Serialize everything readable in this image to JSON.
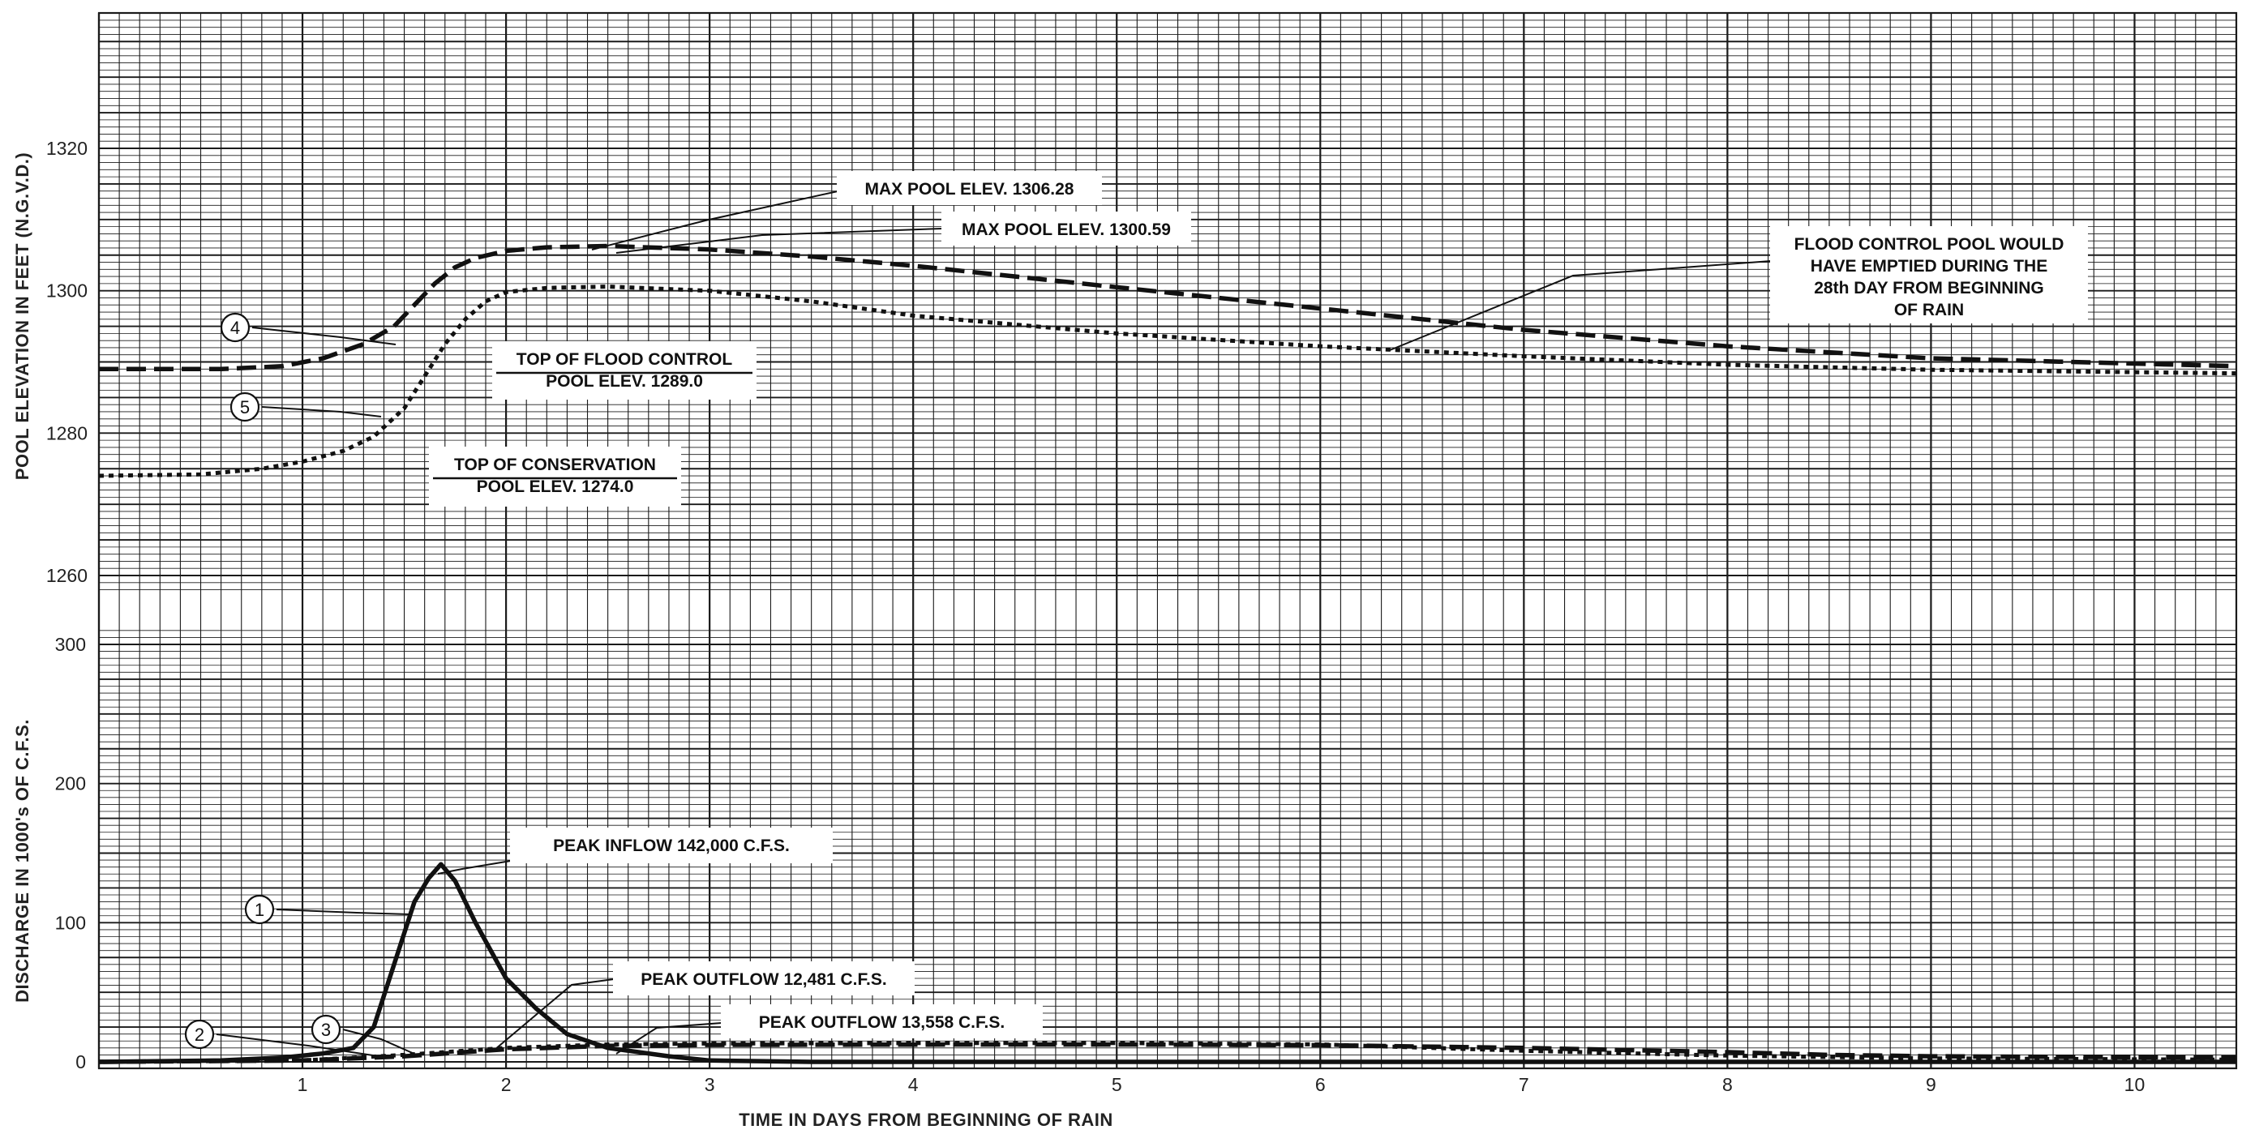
{
  "chart_data": {
    "type": "line",
    "xlabel": "TIME IN DAYS FROM BEGINNING OF RAIN",
    "x_ticks": [
      "1",
      "2",
      "3",
      "4",
      "5",
      "6",
      "7",
      "8",
      "9",
      "10"
    ],
    "xlim": [
      0,
      10.5
    ],
    "top_panel": {
      "ylabel": "POOL ELEVATION IN FEET (N.G.V.D.)",
      "y_ticks": [
        "1260",
        "1280",
        "1300",
        "1320"
      ],
      "ylim": [
        1257,
        1341
      ],
      "series": [
        {
          "marker": "4",
          "style": "dashed",
          "x": [
            0,
            0.6,
            0.9,
            1.1,
            1.3,
            1.45,
            1.55,
            1.65,
            1.75,
            1.85,
            2.0,
            2.2,
            2.5,
            3.0,
            3.5,
            4.0,
            5.0,
            6.0,
            6.5,
            7.0,
            8.0,
            9.0,
            10.5
          ],
          "y": [
            1289.0,
            1289.0,
            1289.4,
            1290.5,
            1292.5,
            1295.0,
            1298.0,
            1301.0,
            1303.3,
            1304.6,
            1305.6,
            1306.1,
            1306.28,
            1305.8,
            1304.8,
            1303.5,
            1300.5,
            1297.5,
            1296.0,
            1294.5,
            1292.2,
            1290.5,
            1289.4
          ]
        },
        {
          "marker": "5",
          "style": "dotted",
          "x": [
            0,
            0.5,
            0.8,
            1.0,
            1.2,
            1.35,
            1.5,
            1.6,
            1.7,
            1.8,
            1.9,
            2.0,
            2.2,
            2.5,
            3.0,
            3.5,
            4.0,
            5.0,
            6.0,
            7.0,
            8.0,
            9.0,
            10.5
          ],
          "y": [
            1274.0,
            1274.2,
            1275.0,
            1276.0,
            1277.5,
            1279.5,
            1283.5,
            1288.0,
            1292.5,
            1296.0,
            1298.5,
            1299.8,
            1300.4,
            1300.59,
            1300.0,
            1298.5,
            1296.5,
            1294.0,
            1292.2,
            1290.8,
            1289.6,
            1288.9,
            1288.4
          ]
        }
      ]
    },
    "bottom_panel": {
      "ylabel": "DISCHARGE IN 1000's OF C.F.S.",
      "y_ticks": [
        "0",
        "100",
        "200",
        "300"
      ],
      "ylim": [
        -4,
        300
      ],
      "series": [
        {
          "marker": "1",
          "style": "solid",
          "x": [
            0,
            0.6,
            0.9,
            1.1,
            1.25,
            1.35,
            1.45,
            1.55,
            1.62,
            1.68,
            1.75,
            1.85,
            2.0,
            2.15,
            2.3,
            2.5,
            2.8,
            3.0,
            3.5,
            4.0,
            10.5
          ],
          "y": [
            0,
            1,
            3,
            6,
            10,
            25,
            70,
            115,
            132,
            142,
            130,
            100,
            60,
            38,
            20,
            10,
            4,
            1,
            0,
            0,
            0
          ]
        },
        {
          "marker": "2",
          "style": "dashed",
          "x": [
            0,
            1.0,
            1.5,
            2.0,
            2.5,
            3.0,
            4.0,
            5.0,
            6.0,
            7.0,
            8.0,
            8.5,
            9.0,
            10.5
          ],
          "y": [
            0,
            1,
            4,
            9,
            11.5,
            12.2,
            12.4,
            12.48,
            12.0,
            10.0,
            7.0,
            5.0,
            4.0,
            3.0
          ]
        },
        {
          "marker": "3",
          "style": "dotted",
          "x": [
            0,
            1.0,
            1.5,
            2.0,
            2.5,
            3.0,
            4.0,
            5.0,
            6.0,
            7.0,
            8.0,
            9.0,
            10.5
          ],
          "y": [
            0,
            1,
            5,
            10,
            12.5,
            13.2,
            13.5,
            13.56,
            12.5,
            8.0,
            4.5,
            2.5,
            1.5
          ]
        }
      ]
    },
    "annotations": [
      {
        "text": "MAX POOL ELEV. 1306.28"
      },
      {
        "text": "MAX POOL ELEV. 1300.59"
      },
      {
        "lines": [
          "FLOOD CONTROL POOL WOULD",
          "HAVE EMPTIED DURING THE",
          "28th DAY FROM BEGINNING",
          "OF RAIN"
        ]
      },
      {
        "lines": [
          "TOP OF FLOOD CONTROL",
          "POOL ELEV. 1289.0"
        ]
      },
      {
        "lines": [
          "TOP OF CONSERVATION",
          "POOL ELEV. 1274.0"
        ]
      },
      {
        "text": "PEAK INFLOW 142,000 C.F.S."
      },
      {
        "text": "PEAK OUTFLOW 12,481 C.F.S."
      },
      {
        "text": "PEAK OUTFLOW 13,558 C.F.S."
      }
    ],
    "grid": true,
    "colors": {
      "ink": "#111111",
      "grid": "#1a1a1a",
      "paper": "#ffffff"
    }
  }
}
